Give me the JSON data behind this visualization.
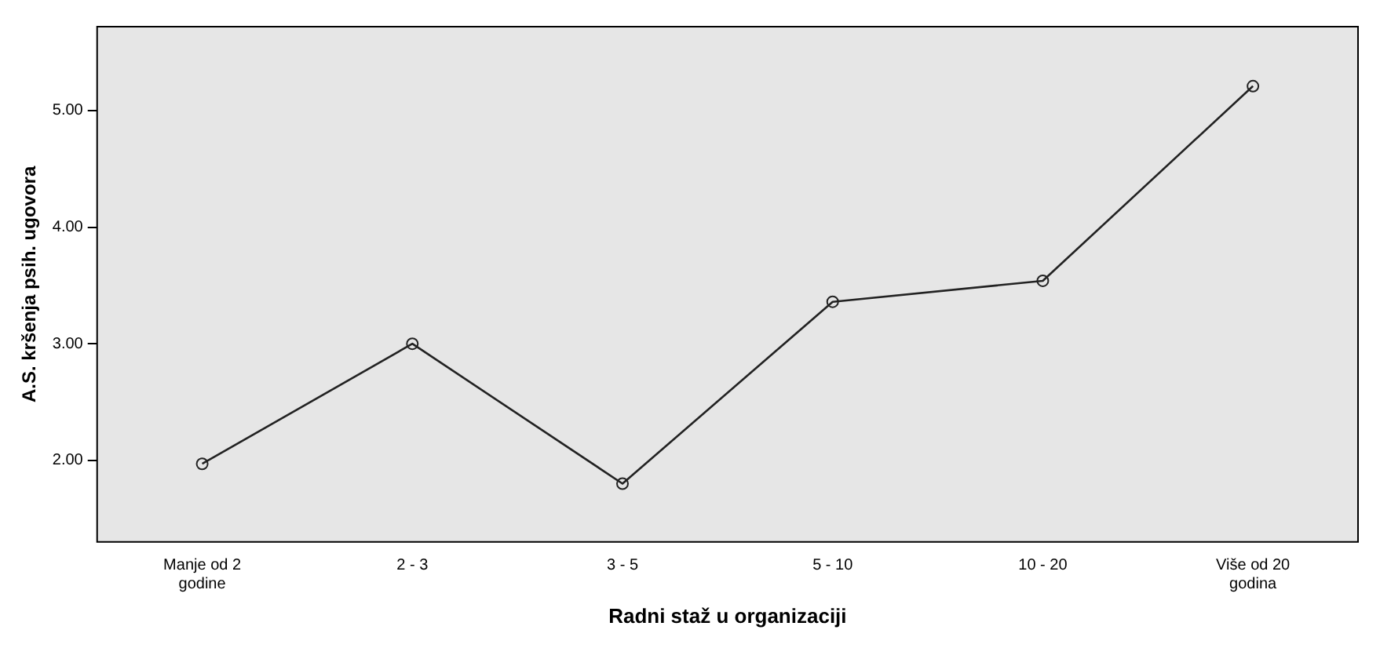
{
  "chart_data": {
    "type": "line",
    "xlabel": "Radni staž u organizaciji",
    "ylabel": "A.S. kršenja psih. ugovora",
    "categories": [
      "Manje od 2 godine",
      "2 - 3",
      "3 - 5",
      "5 - 10",
      "10 - 20",
      "Više od 20 godina"
    ],
    "values": [
      1.97,
      3.0,
      1.8,
      3.36,
      3.54,
      5.21
    ],
    "color": "#222222",
    "marker": "circle",
    "line_style": "solid",
    "grid": false,
    "legend": false,
    "ylim": [
      1.3,
      5.72
    ],
    "yticks": [
      {
        "value": 2,
        "label": "2.00"
      },
      {
        "value": 3,
        "label": "3.00"
      },
      {
        "value": 4,
        "label": "4.00"
      },
      {
        "value": 5,
        "label": "5.00"
      }
    ]
  }
}
